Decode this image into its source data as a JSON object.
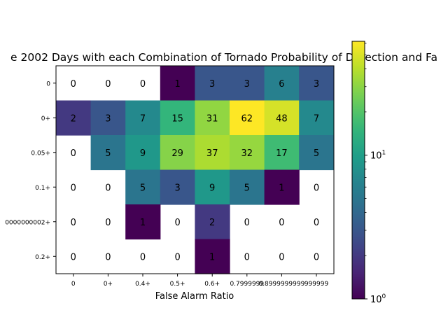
{
  "chart_data": {
    "type": "heatmap",
    "title": "e 2002 Days with each Combination of Tornado Probability of Detection and Fa",
    "xlabel": "False Alarm Ratio",
    "ylabel": "",
    "x_categories": [
      "0",
      "0+",
      "0.4+",
      "0.5+",
      "0.6+",
      "0.7999999",
      "0.8999999999",
      "999999"
    ],
    "y_categories": [
      "0",
      "0+",
      "0.05+",
      "0.1+",
      "0000000002+",
      "0.2+"
    ],
    "values": [
      [
        0,
        0,
        0,
        1,
        3,
        3,
        6,
        3
      ],
      [
        2,
        3,
        7,
        15,
        31,
        62,
        48,
        7
      ],
      [
        0,
        5,
        9,
        29,
        37,
        32,
        17,
        5
      ],
      [
        0,
        0,
        5,
        3,
        9,
        5,
        1,
        0
      ],
      [
        0,
        0,
        1,
        0,
        2,
        0,
        0,
        0
      ],
      [
        0,
        0,
        0,
        0,
        1,
        0,
        0,
        0
      ]
    ],
    "colorscale": "viridis",
    "color_scale_type": "log",
    "zero_cells": "blank",
    "colorbar": {
      "range": [
        1,
        62
      ],
      "ticks": [
        {
          "value": 1,
          "label": "10",
          "exp": "0"
        },
        {
          "value": 10,
          "label": "10",
          "exp": "1"
        }
      ]
    }
  }
}
